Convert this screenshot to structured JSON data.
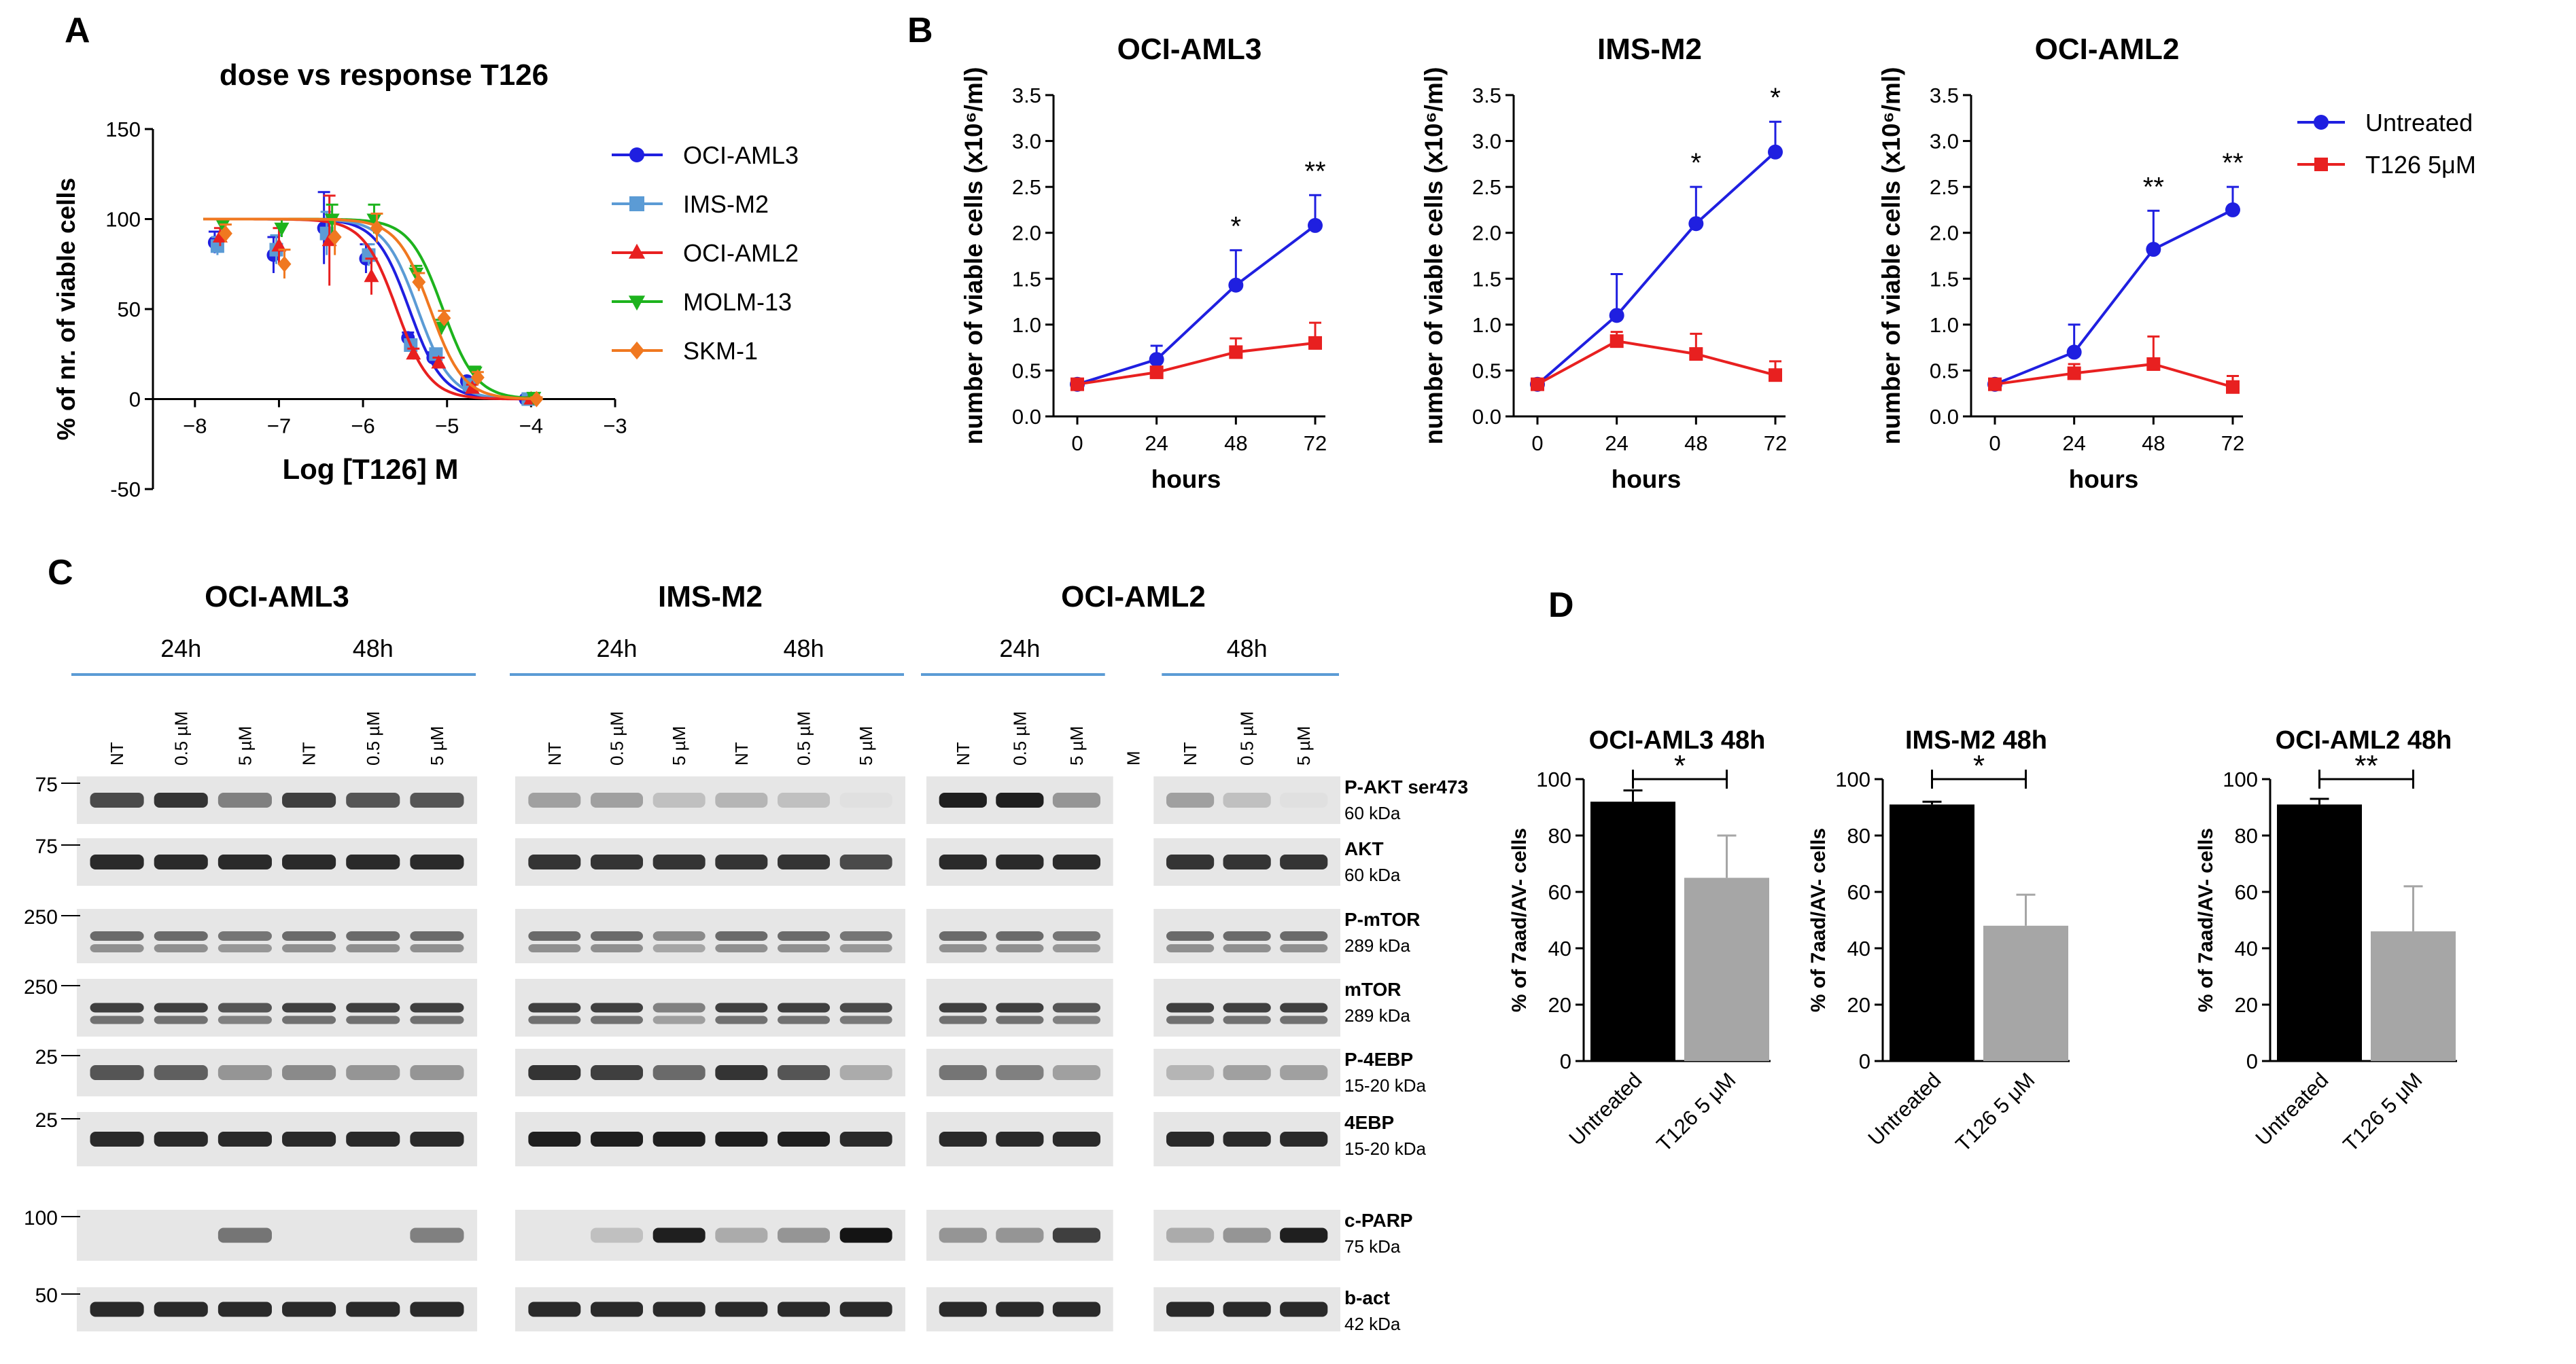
{
  "panels": {
    "a": {
      "letter": "A"
    },
    "b": {
      "letter": "B"
    },
    "c": {
      "letter": "C"
    },
    "d": {
      "letter": "D"
    }
  },
  "chart_data": [
    {
      "id": "A",
      "type": "line",
      "title": "dose vs response T126",
      "xlabel": "Log [T126] M",
      "ylabel": "% of nr. of viable cells",
      "xlim": [
        -8.5,
        -3
      ],
      "ylim": [
        -50,
        150
      ],
      "xticks": [
        -8,
        -7,
        -6,
        -5,
        -4,
        -3
      ],
      "yticks": [
        -50,
        0,
        50,
        100,
        150
      ],
      "x": [
        -7.7,
        -7,
        -6.4,
        -5.9,
        -5.4,
        -5.1,
        -4.7,
        -4
      ],
      "series": [
        {
          "name": "OCI-AML3",
          "color": "#1f1fe0",
          "marker": "circle",
          "ic50": -5.45,
          "values": [
            87,
            80,
            95,
            78,
            34,
            23,
            10,
            0
          ],
          "err": [
            6,
            10,
            20,
            8,
            3,
            3,
            2,
            1
          ]
        },
        {
          "name": "IMS-M2",
          "color": "#5b9bd5",
          "marker": "square",
          "ic50": -5.35,
          "values": [
            85,
            83,
            92,
            80,
            30,
            25,
            8,
            0
          ],
          "err": [
            5,
            8,
            12,
            6,
            3,
            3,
            2,
            1
          ]
        },
        {
          "name": "OCI-AML2",
          "color": "#e82020",
          "marker": "triangle-up",
          "ic50": -5.6,
          "values": [
            90,
            85,
            88,
            68,
            25,
            20,
            6,
            0
          ],
          "err": [
            5,
            10,
            25,
            10,
            3,
            3,
            2,
            1
          ]
        },
        {
          "name": "MOLM-13",
          "color": "#1db31d",
          "marker": "triangle-down",
          "ic50": -5.05,
          "values": [
            97,
            95,
            100,
            100,
            70,
            40,
            15,
            1
          ],
          "err": [
            3,
            5,
            8,
            8,
            4,
            4,
            3,
            1
          ]
        },
        {
          "name": "SKM-1",
          "color": "#f07820",
          "marker": "diamond",
          "ic50": -5.2,
          "values": [
            92,
            75,
            90,
            95,
            65,
            45,
            12,
            0
          ],
          "err": [
            5,
            8,
            10,
            8,
            5,
            4,
            3,
            1
          ]
        }
      ]
    },
    {
      "id": "B1",
      "type": "line",
      "title": "OCI-AML3",
      "xlabel": "hours",
      "ylabel": "number of viable cells (x10⁶/ml)",
      "categories": [
        "0",
        "24",
        "48",
        "72"
      ],
      "ylim": [
        0,
        3.5
      ],
      "yticks": [
        "0.0",
        "0.5",
        "1.0",
        "1.5",
        "2.0",
        "2.5",
        "3.0",
        "3.5"
      ],
      "series": [
        {
          "name": "Untreated",
          "color": "#1f1fe0",
          "values": [
            0.35,
            0.62,
            1.43,
            2.08
          ],
          "err": [
            0.03,
            0.15,
            0.38,
            0.33
          ]
        },
        {
          "name": "T126 5μM",
          "color": "#e82020",
          "values": [
            0.35,
            0.48,
            0.7,
            0.8
          ],
          "err": [
            0.03,
            0.05,
            0.15,
            0.22
          ]
        }
      ],
      "significance": [
        "",
        "",
        "*",
        "**"
      ]
    },
    {
      "id": "B2",
      "type": "line",
      "title": "IMS-M2",
      "xlabel": "hours",
      "ylabel": "number of viable cells (x10⁶/ml)",
      "categories": [
        "0",
        "24",
        "48",
        "72"
      ],
      "ylim": [
        0,
        3.5
      ],
      "yticks": [
        "0.0",
        "0.5",
        "1.0",
        "1.5",
        "2.0",
        "2.5",
        "3.0",
        "3.5"
      ],
      "series": [
        {
          "name": "Untreated",
          "color": "#1f1fe0",
          "values": [
            0.35,
            1.1,
            2.1,
            2.88
          ],
          "err": [
            0.03,
            0.45,
            0.4,
            0.33
          ]
        },
        {
          "name": "T126 5μM",
          "color": "#e82020",
          "values": [
            0.35,
            0.82,
            0.68,
            0.45
          ],
          "err": [
            0.03,
            0.1,
            0.22,
            0.15
          ]
        }
      ],
      "significance": [
        "",
        "",
        "*",
        "*"
      ]
    },
    {
      "id": "B3",
      "type": "line",
      "title": "OCI-AML2",
      "xlabel": "hours",
      "ylabel": "number of viable cells (x10⁶/ml)",
      "categories": [
        "0",
        "24",
        "48",
        "72"
      ],
      "ylim": [
        0,
        3.5
      ],
      "yticks": [
        "0.0",
        "0.5",
        "1.0",
        "1.5",
        "2.0",
        "2.5",
        "3.0",
        "3.5"
      ],
      "series": [
        {
          "name": "Untreated",
          "color": "#1f1fe0",
          "values": [
            0.35,
            0.7,
            1.82,
            2.25
          ],
          "err": [
            0.03,
            0.3,
            0.42,
            0.25
          ]
        },
        {
          "name": "T126 5μM",
          "color": "#e82020",
          "values": [
            0.35,
            0.47,
            0.57,
            0.32
          ],
          "err": [
            0.03,
            0.1,
            0.3,
            0.12
          ]
        }
      ],
      "significance": [
        "",
        "",
        "**",
        "**"
      ]
    },
    {
      "id": "D1",
      "type": "bar",
      "title": "OCI-AML3 48h",
      "ylabel": "% of 7aad/AV- cells",
      "categories": [
        "Untreated",
        "T126 5 μM"
      ],
      "colors": [
        "#000000",
        "#a6a6a6"
      ],
      "values": [
        92,
        65
      ],
      "err": [
        4,
        15
      ],
      "ylim": [
        0,
        100
      ],
      "yticks": [
        "0",
        "20",
        "40",
        "60",
        "80",
        "100"
      ],
      "significance": "*"
    },
    {
      "id": "D2",
      "type": "bar",
      "title": "IMS-M2 48h",
      "ylabel": "% of 7aad/AV- cells",
      "categories": [
        "Untreated",
        "T126 5 μM"
      ],
      "colors": [
        "#000000",
        "#a6a6a6"
      ],
      "values": [
        91,
        48
      ],
      "err": [
        1,
        11
      ],
      "ylim": [
        0,
        100
      ],
      "yticks": [
        "0",
        "20",
        "40",
        "60",
        "80",
        "100"
      ],
      "significance": "*"
    },
    {
      "id": "D3",
      "type": "bar",
      "title": "OCI-AML2 48h",
      "ylabel": "% of 7aad/AV- cells",
      "categories": [
        "Untreated",
        "T126 5 μM"
      ],
      "colors": [
        "#000000",
        "#a6a6a6"
      ],
      "values": [
        91,
        46
      ],
      "err": [
        2,
        16
      ],
      "ylim": [
        0,
        100
      ],
      "yticks": [
        "0",
        "20",
        "40",
        "60",
        "80",
        "100"
      ],
      "significance": "**"
    }
  ],
  "western": {
    "groups": [
      {
        "name": "OCI-AML3",
        "timepoints": [
          "24h",
          "48h"
        ],
        "lanes": [
          "NT",
          "0.5 µM",
          "5 µM",
          "NT",
          "0.5 µM",
          "5 µM"
        ]
      },
      {
        "name": "IMS-M2",
        "timepoints": [
          "24h",
          "48h"
        ],
        "lanes": [
          "NT",
          "0.5 µM",
          "5 µM",
          "NT",
          "0.5 µM",
          "5 µM"
        ]
      },
      {
        "name": "OCI-AML2",
        "timepoints": [
          "24h",
          "48h"
        ],
        "lanes": [
          "NT",
          "0.5 µM",
          "5 µM",
          "M",
          "NT",
          "0.5 µM",
          "5 µM"
        ]
      }
    ],
    "blots": [
      {
        "protein": "P-AKT ser473",
        "kda": "60 kDa",
        "marker": "75"
      },
      {
        "protein": "AKT",
        "kda": "60 kDa",
        "marker": "75"
      },
      {
        "protein": "P-mTOR",
        "kda": "289 kDa",
        "marker": "250"
      },
      {
        "protein": "mTOR",
        "kda": "289 kDa",
        "marker": "250"
      },
      {
        "protein": "P-4EBP",
        "kda": "15-20 kDa",
        "marker": "25"
      },
      {
        "protein": "4EBP",
        "kda": "15-20 kDa",
        "marker": "25"
      },
      {
        "protein": "c-PARP",
        "kda": "75 kDa",
        "marker": "100"
      },
      {
        "protein": "b-act",
        "kda": "42 kDa",
        "marker": "50"
      }
    ],
    "intensity": {
      "OCI-AML3": [
        [
          0.75,
          0.85,
          0.5,
          0.8,
          0.7,
          0.7
        ],
        [
          0.9,
          0.9,
          0.9,
          0.9,
          0.9,
          0.9
        ],
        [
          0.6,
          0.6,
          0.55,
          0.6,
          0.6,
          0.6
        ],
        [
          0.8,
          0.8,
          0.7,
          0.8,
          0.8,
          0.8
        ],
        [
          0.7,
          0.65,
          0.4,
          0.45,
          0.4,
          0.4
        ],
        [
          0.9,
          0.9,
          0.9,
          0.9,
          0.9,
          0.9
        ],
        [
          0,
          0,
          0.55,
          0,
          0,
          0.5
        ],
        [
          0.9,
          0.9,
          0.9,
          0.9,
          0.9,
          0.9
        ]
      ],
      "IMS-M2": [
        [
          0.35,
          0.35,
          0.2,
          0.25,
          0.2,
          0.05
        ],
        [
          0.85,
          0.85,
          0.85,
          0.85,
          0.85,
          0.75
        ],
        [
          0.6,
          0.6,
          0.45,
          0.6,
          0.6,
          0.55
        ],
        [
          0.8,
          0.8,
          0.5,
          0.8,
          0.8,
          0.75
        ],
        [
          0.85,
          0.8,
          0.6,
          0.85,
          0.7,
          0.3
        ],
        [
          0.95,
          0.95,
          0.95,
          0.95,
          0.95,
          0.9
        ],
        [
          0,
          0.2,
          0.95,
          0.3,
          0.4,
          1.0
        ],
        [
          0.9,
          0.9,
          0.9,
          0.9,
          0.9,
          0.9
        ]
      ],
      "OCI-AML2": [
        [
          0.95,
          0.95,
          0.4,
          0,
          0.35,
          0.2,
          0.05
        ],
        [
          0.9,
          0.9,
          0.9,
          0,
          0.85,
          0.85,
          0.85
        ],
        [
          0.6,
          0.6,
          0.55,
          0,
          0.6,
          0.6,
          0.6
        ],
        [
          0.8,
          0.8,
          0.7,
          0,
          0.8,
          0.8,
          0.8
        ],
        [
          0.55,
          0.5,
          0.35,
          0,
          0.25,
          0.35,
          0.35
        ],
        [
          0.9,
          0.9,
          0.9,
          0,
          0.9,
          0.9,
          0.9
        ],
        [
          0.4,
          0.4,
          0.8,
          0,
          0.3,
          0.4,
          0.95
        ],
        [
          0.9,
          0.9,
          0.9,
          0,
          0.9,
          0.9,
          0.9
        ]
      ]
    }
  }
}
